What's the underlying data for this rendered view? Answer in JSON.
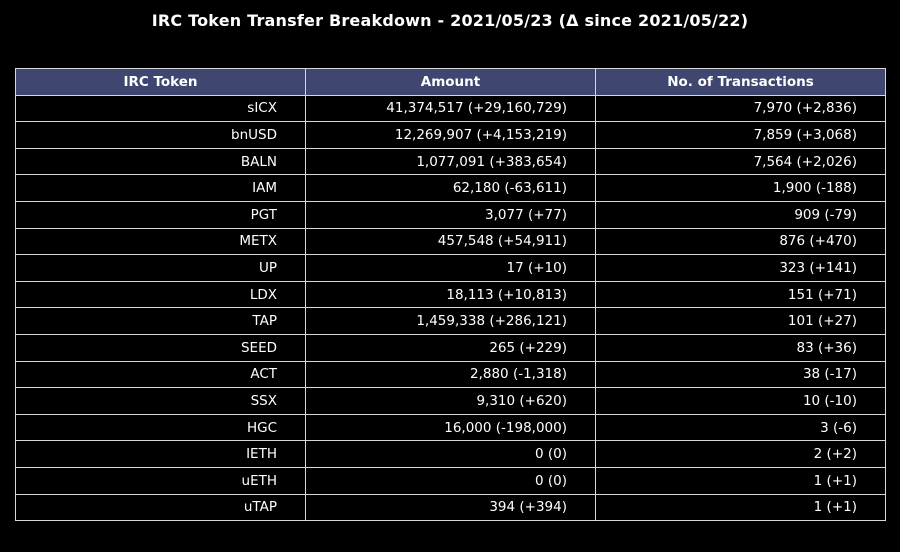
{
  "title": "IRC Token Transfer Breakdown - 2021/05/23 (Δ since 2021/05/22)",
  "colors": {
    "background": "#000000",
    "header_fill": "#3f4670",
    "text": "#ffffff",
    "grid_line": "#d8d8d8"
  },
  "chart_data": {
    "type": "table",
    "title": "IRC Token Transfer Breakdown - 2021/05/23 (Δ since 2021/05/22)",
    "columns": [
      "IRC Token",
      "Amount",
      "No. of Transactions"
    ],
    "rows": [
      [
        "sICX",
        "41,374,517 (+29,160,729)",
        "7,970 (+2,836)"
      ],
      [
        "bnUSD",
        "12,269,907 (+4,153,219)",
        "7,859 (+3,068)"
      ],
      [
        "BALN",
        "1,077,091 (+383,654)",
        "7,564 (+2,026)"
      ],
      [
        "IAM",
        "62,180 (-63,611)",
        "1,900 (-188)"
      ],
      [
        "PGT",
        "3,077 (+77)",
        "909 (-79)"
      ],
      [
        "METX",
        "457,548 (+54,911)",
        "876 (+470)"
      ],
      [
        "UP",
        "17 (+10)",
        "323 (+141)"
      ],
      [
        "LDX",
        "18,113 (+10,813)",
        "151 (+71)"
      ],
      [
        "TAP",
        "1,459,338 (+286,121)",
        "101 (+27)"
      ],
      [
        "SEED",
        "265 (+229)",
        "83 (+36)"
      ],
      [
        "ACT",
        "2,880 (-1,318)",
        "38 (-17)"
      ],
      [
        "SSX",
        "9,310 (+620)",
        "10 (-10)"
      ],
      [
        "HGC",
        "16,000 (-198,000)",
        "3 (-6)"
      ],
      [
        "IETH",
        "0 (0)",
        "2 (+2)"
      ],
      [
        "uETH",
        "0 (0)",
        "1 (+1)"
      ],
      [
        "uTAP",
        "394 (+394)",
        "1 (+1)"
      ]
    ]
  }
}
